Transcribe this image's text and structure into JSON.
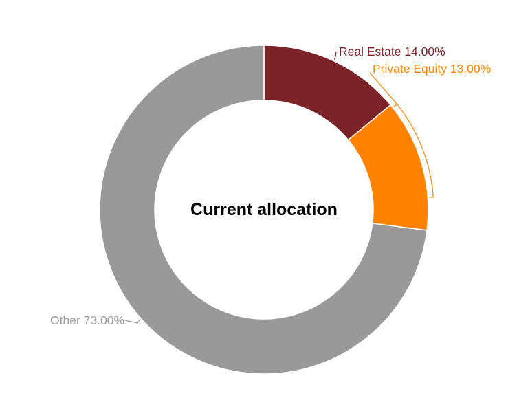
{
  "chart_data": {
    "type": "pie",
    "variant": "donut",
    "title": "Current allocation",
    "categories": [
      "Real Estate",
      "Private Equity",
      "Other"
    ],
    "values": [
      14.0,
      13.0,
      73.0
    ],
    "unit": "%",
    "labels": [
      "Real Estate 14.00%",
      "Private Equity 13.00%",
      "Other 73.00%"
    ],
    "colors": [
      "#7b2327",
      "#ff8200",
      "#999999"
    ],
    "label_colors": [
      "#7b2327",
      "#ff8200",
      "#999999"
    ],
    "legend": "none",
    "start_angle": "top, clockwise"
  }
}
